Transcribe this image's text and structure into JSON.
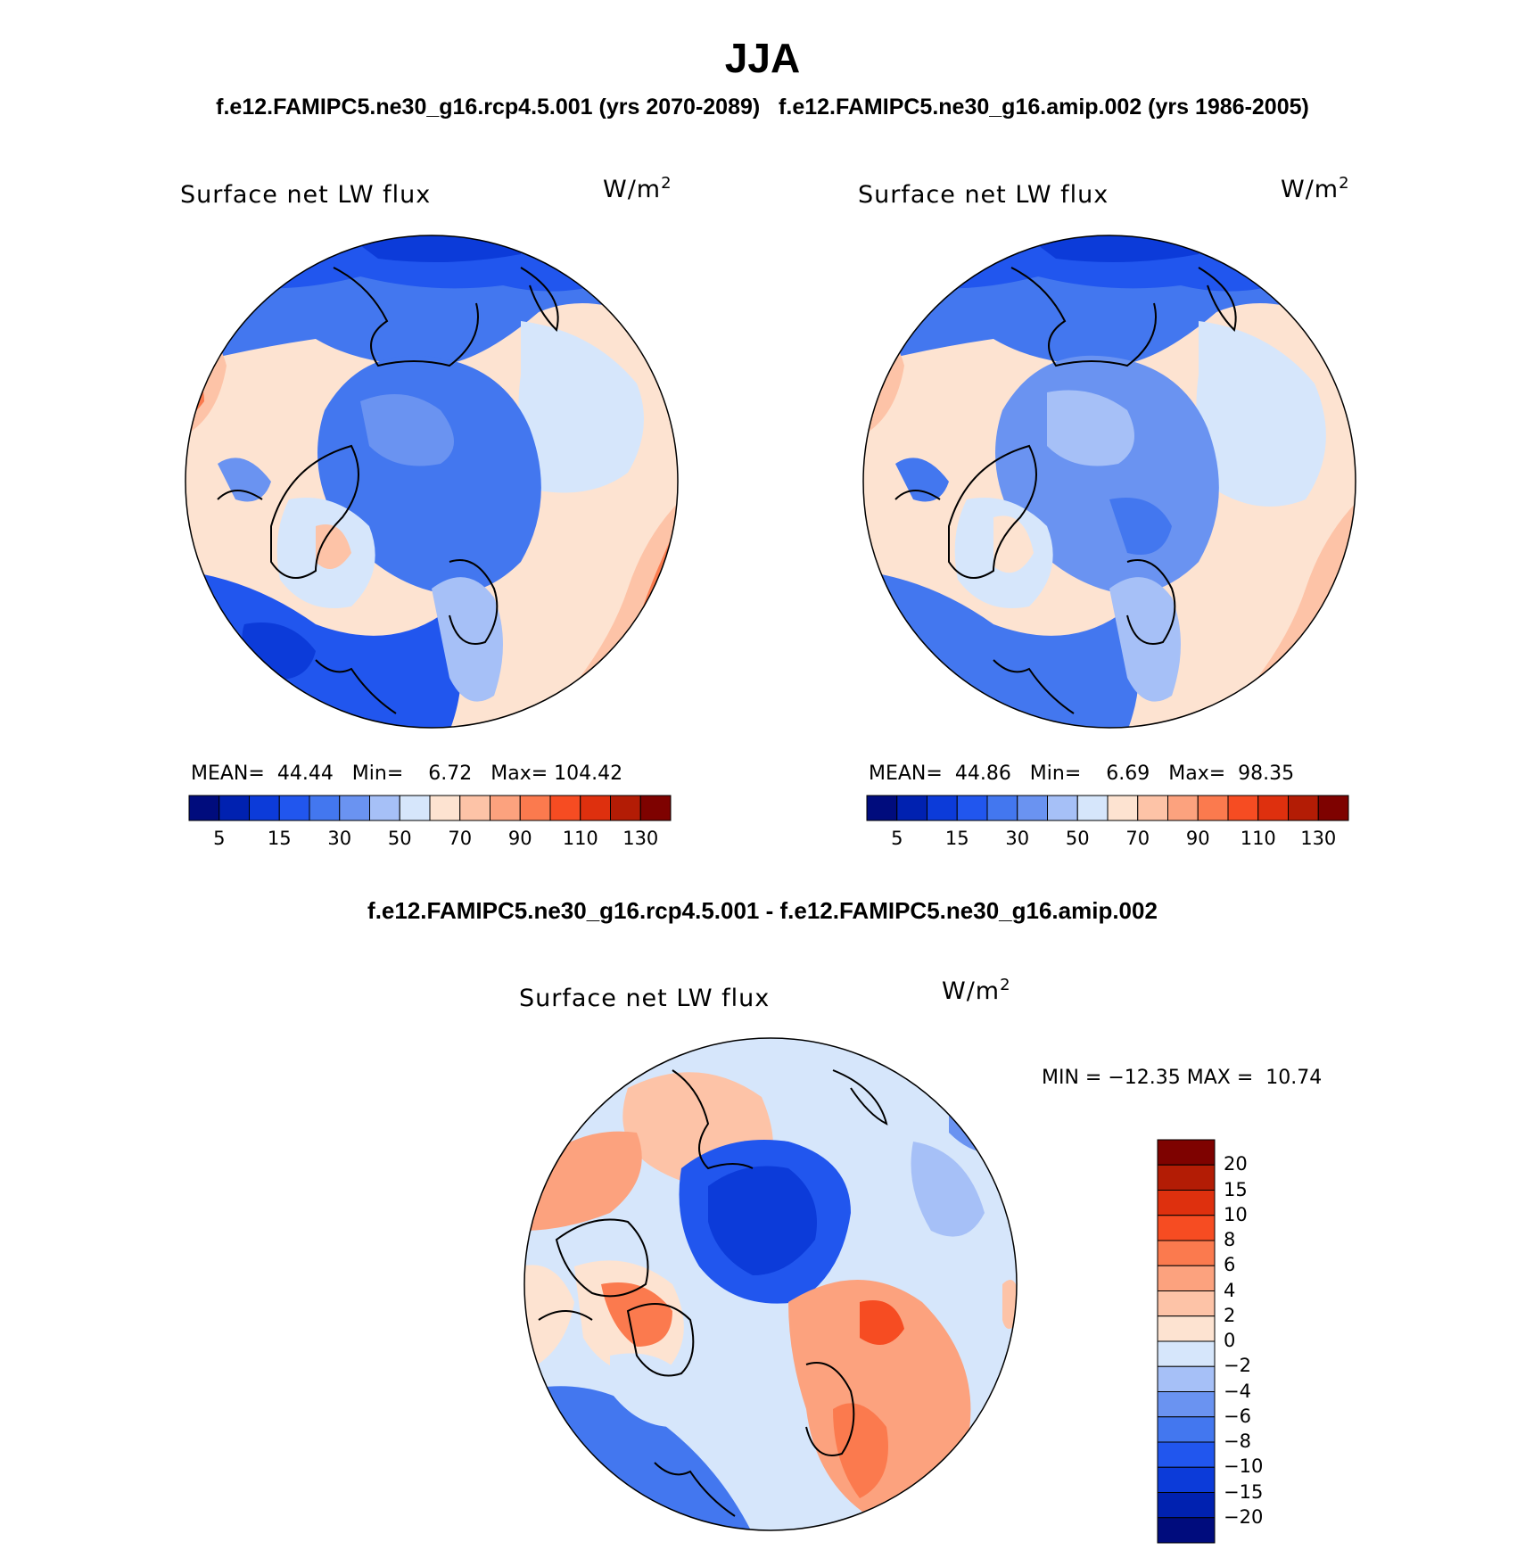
{
  "header": {
    "title": "JJA",
    "case_line": "f.e12.FAMIPC5.ne30_g16.rcp4.5.001 (yrs 2070-2089)   f.e12.FAMIPC5.ne30_g16.amip.002 (yrs 1986-2005)",
    "diff_title": "f.e12.FAMIPC5.ne30_g16.rcp4.5.001 - f.e12.FAMIPC5.ne30_g16.amip.002"
  },
  "panels": [
    {
      "variable": "Surface net LW flux",
      "units_base": "W/m",
      "units_exp": "2",
      "mean_label": "MEAN=",
      "mean_value": "44.44",
      "min_label": "Min=",
      "min_value": "6.72",
      "max_label": "Max=",
      "max_value": "104.42"
    },
    {
      "variable": "Surface net LW flux",
      "units_base": "W/m",
      "units_exp": "2",
      "mean_label": "MEAN=",
      "mean_value": "44.86",
      "min_label": "Min=",
      "min_value": "6.69",
      "max_label": "Max=",
      "max_value": "98.35"
    }
  ],
  "diff_panel": {
    "variable": "Surface net LW flux",
    "units_base": "W/m",
    "units_exp": "2",
    "minmax_text": "MIN = −12.35 MAX =  10.74"
  },
  "colorbar_abs": {
    "colors": [
      "#000c7d",
      "#0021b0",
      "#0c3bd9",
      "#2156ee",
      "#4377ef",
      "#6a93f1",
      "#a6c0f7",
      "#d6e6fb",
      "#fde3d1",
      "#fdc3a7",
      "#fca27e",
      "#fb7a4e",
      "#f64c22",
      "#de300e",
      "#b31c05",
      "#7e0200"
    ],
    "labels": [
      "5",
      "15",
      "30",
      "50",
      "70",
      "90",
      "110",
      "130"
    ]
  },
  "colorbar_diff": {
    "colors_top_to_bottom": [
      "#7e0200",
      "#b31c05",
      "#de300e",
      "#f64c22",
      "#fb7a4e",
      "#fca27e",
      "#fdc3a7",
      "#fde3d1",
      "#d6e6fb",
      "#a6c0f7",
      "#6a93f1",
      "#4377ef",
      "#2156ee",
      "#0c3bd9",
      "#0021b0",
      "#000c7d"
    ],
    "labels_top_to_bottom": [
      "20",
      "15",
      "10",
      "8",
      "6",
      "4",
      "2",
      "0",
      "−2",
      "−4",
      "−6",
      "−8",
      "−10",
      "−15",
      "−20"
    ]
  }
}
